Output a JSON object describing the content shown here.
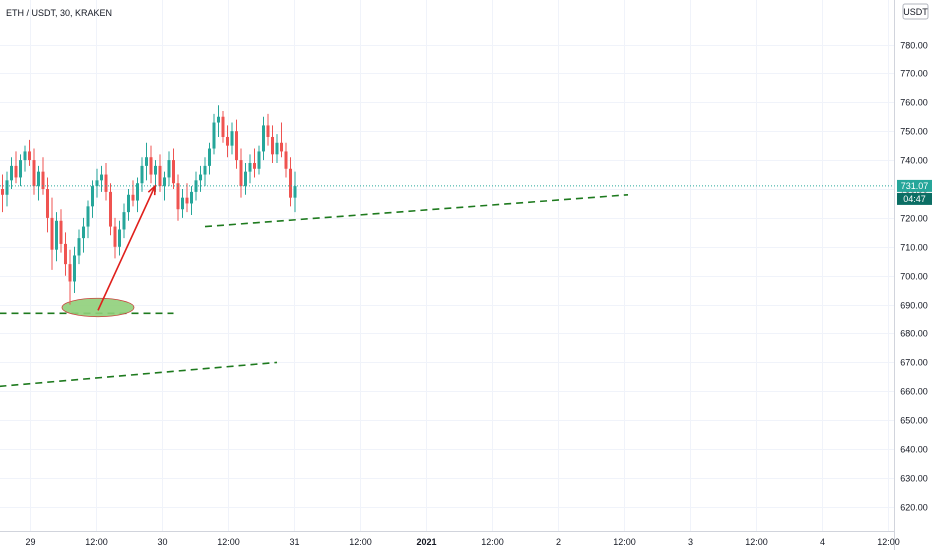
{
  "header": {
    "symbol_label": "ETH / USDT, 30, KRAKEN",
    "currency_badge": "USDT"
  },
  "price_axis": {
    "ticks": [
      "780.00",
      "770.00",
      "760.00",
      "750.00",
      "740.00",
      "730.00",
      "720.00",
      "710.00",
      "700.00",
      "690.00",
      "680.00",
      "670.00",
      "660.00",
      "650.00",
      "640.00",
      "630.00",
      "620.00"
    ],
    "last_price": "731.07",
    "countdown": "04:47"
  },
  "time_axis": {
    "ticks": [
      "29",
      "12:00",
      "30",
      "12:00",
      "31",
      "12:00",
      "2021",
      "12:00",
      "2",
      "12:00",
      "3",
      "12:00",
      "4",
      "12:00"
    ],
    "bold_tick": "2021"
  },
  "colors": {
    "up": "#26a69a",
    "down": "#ef5350",
    "trendline": "#1e7a1e",
    "arrow": "#e0201c",
    "ellipse_fill": "#8fcf7a",
    "last_price_badge": "#26a69a",
    "countdown_badge": "#0b6e64",
    "axis_text": "#131722",
    "grid": "#f0f3fa"
  },
  "chart_data": {
    "type": "candlestick",
    "symbol": "ETH / USDT",
    "interval": "30",
    "exchange": "KRAKEN",
    "ylim": [
      615,
      783
    ],
    "x_ticks": [
      "29",
      "12:00",
      "30",
      "12:00",
      "31",
      "12:00",
      "2021",
      "12:00",
      "2",
      "12:00",
      "3",
      "12:00",
      "4",
      "12:00"
    ],
    "y_ticks": [
      780,
      770,
      760,
      750,
      740,
      730,
      720,
      710,
      700,
      690,
      680,
      670,
      660,
      650,
      640,
      630,
      620
    ],
    "last_price": 731.07,
    "candles": [
      {
        "o": 730,
        "h": 735,
        "l": 722,
        "c": 728
      },
      {
        "o": 728,
        "h": 736,
        "l": 724,
        "c": 733
      },
      {
        "o": 733,
        "h": 741,
        "l": 730,
        "c": 738
      },
      {
        "o": 738,
        "h": 743,
        "l": 732,
        "c": 734
      },
      {
        "o": 734,
        "h": 742,
        "l": 731,
        "c": 740
      },
      {
        "o": 740,
        "h": 745,
        "l": 736,
        "c": 743
      },
      {
        "o": 743,
        "h": 747,
        "l": 738,
        "c": 740
      },
      {
        "o": 740,
        "h": 744,
        "l": 728,
        "c": 731
      },
      {
        "o": 731,
        "h": 738,
        "l": 726,
        "c": 736
      },
      {
        "o": 736,
        "h": 741,
        "l": 728,
        "c": 730
      },
      {
        "o": 730,
        "h": 734,
        "l": 715,
        "c": 720
      },
      {
        "o": 720,
        "h": 727,
        "l": 702,
        "c": 709
      },
      {
        "o": 709,
        "h": 722,
        "l": 705,
        "c": 719
      },
      {
        "o": 719,
        "h": 723,
        "l": 708,
        "c": 711
      },
      {
        "o": 711,
        "h": 715,
        "l": 700,
        "c": 704
      },
      {
        "o": 704,
        "h": 709,
        "l": 690,
        "c": 698
      },
      {
        "o": 698,
        "h": 710,
        "l": 694,
        "c": 707
      },
      {
        "o": 707,
        "h": 716,
        "l": 704,
        "c": 713
      },
      {
        "o": 713,
        "h": 720,
        "l": 708,
        "c": 717
      },
      {
        "o": 717,
        "h": 726,
        "l": 713,
        "c": 724
      },
      {
        "o": 724,
        "h": 733,
        "l": 720,
        "c": 731
      },
      {
        "o": 731,
        "h": 737,
        "l": 727,
        "c": 733
      },
      {
        "o": 733,
        "h": 738,
        "l": 729,
        "c": 735
      },
      {
        "o": 735,
        "h": 739,
        "l": 726,
        "c": 729
      },
      {
        "o": 729,
        "h": 732,
        "l": 714,
        "c": 717
      },
      {
        "o": 717,
        "h": 720,
        "l": 706,
        "c": 710
      },
      {
        "o": 710,
        "h": 719,
        "l": 707,
        "c": 716
      },
      {
        "o": 716,
        "h": 725,
        "l": 713,
        "c": 722
      },
      {
        "o": 722,
        "h": 730,
        "l": 719,
        "c": 728
      },
      {
        "o": 728,
        "h": 733,
        "l": 724,
        "c": 726
      },
      {
        "o": 726,
        "h": 734,
        "l": 722,
        "c": 732
      },
      {
        "o": 732,
        "h": 741,
        "l": 729,
        "c": 738
      },
      {
        "o": 738,
        "h": 746,
        "l": 733,
        "c": 741
      },
      {
        "o": 741,
        "h": 745,
        "l": 732,
        "c": 735
      },
      {
        "o": 735,
        "h": 740,
        "l": 729,
        "c": 738
      },
      {
        "o": 738,
        "h": 742,
        "l": 729,
        "c": 731
      },
      {
        "o": 731,
        "h": 736,
        "l": 726,
        "c": 734
      },
      {
        "o": 734,
        "h": 743,
        "l": 731,
        "c": 740
      },
      {
        "o": 740,
        "h": 744,
        "l": 730,
        "c": 732
      },
      {
        "o": 732,
        "h": 735,
        "l": 719,
        "c": 723
      },
      {
        "o": 723,
        "h": 730,
        "l": 720,
        "c": 727
      },
      {
        "o": 727,
        "h": 732,
        "l": 722,
        "c": 725
      },
      {
        "o": 725,
        "h": 731,
        "l": 721,
        "c": 729
      },
      {
        "o": 729,
        "h": 736,
        "l": 726,
        "c": 733
      },
      {
        "o": 733,
        "h": 738,
        "l": 729,
        "c": 735
      },
      {
        "o": 735,
        "h": 741,
        "l": 731,
        "c": 738
      },
      {
        "o": 738,
        "h": 746,
        "l": 735,
        "c": 744
      },
      {
        "o": 744,
        "h": 756,
        "l": 742,
        "c": 753
      },
      {
        "o": 753,
        "h": 759,
        "l": 748,
        "c": 755
      },
      {
        "o": 755,
        "h": 757,
        "l": 746,
        "c": 748
      },
      {
        "o": 748,
        "h": 752,
        "l": 741,
        "c": 745
      },
      {
        "o": 745,
        "h": 753,
        "l": 742,
        "c": 750
      },
      {
        "o": 750,
        "h": 754,
        "l": 737,
        "c": 740
      },
      {
        "o": 740,
        "h": 744,
        "l": 727,
        "c": 731
      },
      {
        "o": 731,
        "h": 739,
        "l": 728,
        "c": 736
      },
      {
        "o": 736,
        "h": 742,
        "l": 732,
        "c": 739
      },
      {
        "o": 739,
        "h": 744,
        "l": 734,
        "c": 737
      },
      {
        "o": 737,
        "h": 745,
        "l": 735,
        "c": 743
      },
      {
        "o": 743,
        "h": 755,
        "l": 740,
        "c": 752
      },
      {
        "o": 752,
        "h": 756,
        "l": 745,
        "c": 748
      },
      {
        "o": 748,
        "h": 752,
        "l": 739,
        "c": 742
      },
      {
        "o": 742,
        "h": 749,
        "l": 739,
        "c": 746
      },
      {
        "o": 746,
        "h": 753,
        "l": 741,
        "c": 743
      },
      {
        "o": 743,
        "h": 746,
        "l": 734,
        "c": 737
      },
      {
        "o": 737,
        "h": 741,
        "l": 724,
        "c": 727
      },
      {
        "o": 727,
        "h": 736,
        "l": 722,
        "c": 731
      }
    ],
    "drawings": [
      {
        "kind": "dashed-trendline",
        "from": {
          "x": -6,
          "y": 687
        },
        "to": {
          "x": 38,
          "y": 687
        }
      },
      {
        "kind": "dashed-trendline",
        "from": {
          "x": -6,
          "y": 661
        },
        "to": {
          "x": 61,
          "y": 670
        }
      },
      {
        "kind": "dashed-trendline",
        "from": {
          "x": -6,
          "y": 617
        },
        "to": {
          "x": -1,
          "y": 617
        }
      },
      {
        "kind": "dashed-trendline",
        "from": {
          "x": 45,
          "y": 717
        },
        "to": {
          "x": 139,
          "y": 728
        }
      },
      {
        "kind": "ellipse",
        "center": {
          "x": 21,
          "y": 689
        },
        "rx_bars": 8,
        "ry_price": 3.2
      },
      {
        "kind": "arrow",
        "from": {
          "x": 21,
          "y": 688
        },
        "to": {
          "x": 33,
          "y": 731
        }
      }
    ]
  }
}
